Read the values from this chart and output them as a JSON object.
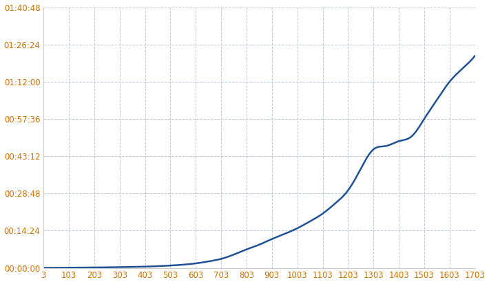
{
  "x_values": [
    3,
    53,
    103,
    153,
    203,
    253,
    303,
    353,
    403,
    453,
    503,
    553,
    603,
    653,
    703,
    753,
    803,
    853,
    903,
    953,
    1003,
    1053,
    1103,
    1153,
    1203,
    1253,
    1303,
    1353,
    1403,
    1453,
    1503,
    1553,
    1603,
    1653,
    1703
  ],
  "y_values_seconds": [
    2,
    3,
    5,
    7,
    10,
    13,
    18,
    23,
    30,
    40,
    55,
    75,
    105,
    150,
    210,
    310,
    430,
    540,
    670,
    790,
    920,
    1080,
    1260,
    1500,
    1800,
    2300,
    2750,
    2830,
    2940,
    3050,
    3456,
    3900,
    4320,
    4620,
    4920
  ],
  "line_color": "#1f5096",
  "background_color": "#ffffff",
  "grid_color": "#c0c8d8",
  "tick_label_color": "#c87000",
  "x_ticks": [
    3,
    103,
    203,
    303,
    403,
    503,
    603,
    703,
    803,
    903,
    1003,
    1103,
    1203,
    1303,
    1403,
    1503,
    1603,
    1703
  ],
  "y_tick_seconds": [
    0,
    864,
    1728,
    2592,
    3456,
    4320,
    5184,
    6048
  ],
  "y_tick_labels": [
    "00:00:00",
    "00:14:24",
    "00:28:48",
    "00:43:12",
    "00:57:36",
    "01:12:00",
    "01:26:24",
    "01:40:48"
  ],
  "xlim": [
    3,
    1703
  ],
  "ylim": [
    0,
    6048
  ],
  "line_width": 1.8,
  "figsize": [
    7.1,
    4.13
  ],
  "dpi": 100
}
